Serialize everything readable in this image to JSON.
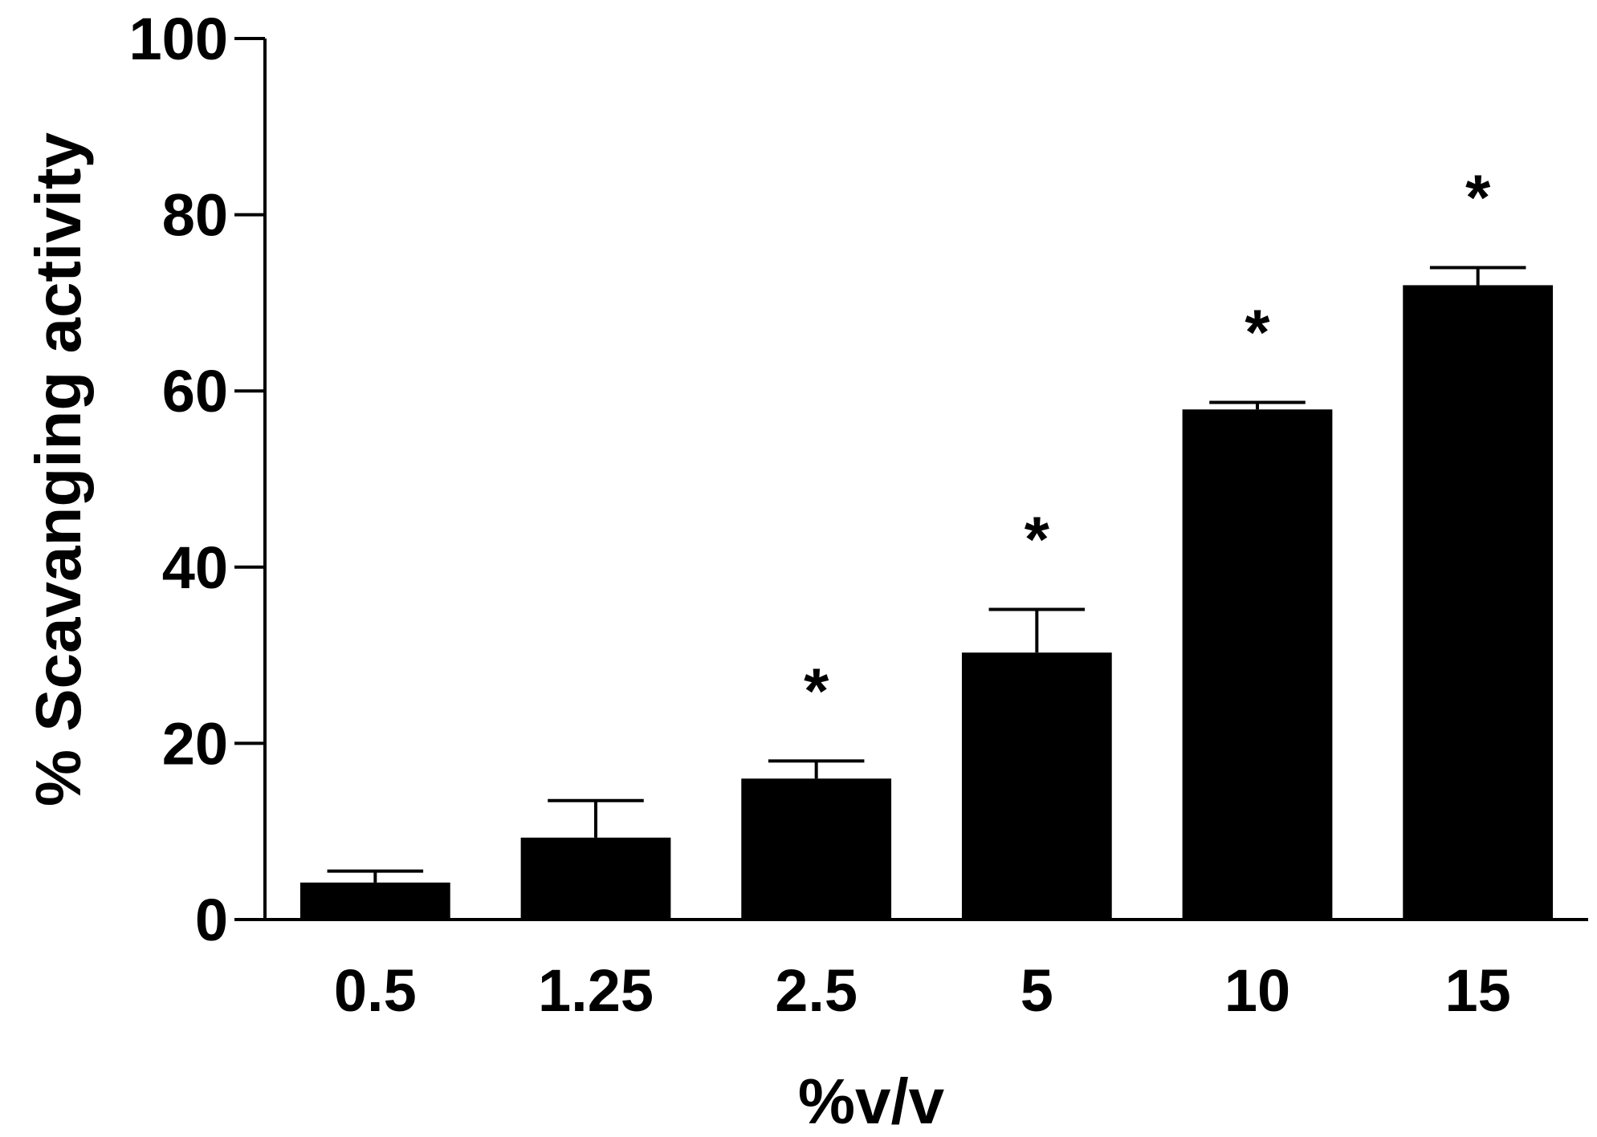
{
  "chart_data": {
    "type": "bar",
    "title": "",
    "xlabel": "%v/v",
    "ylabel": "% Scavanging activity",
    "categories": [
      "0.5",
      "1.25",
      "2.5",
      "5",
      "10",
      "15"
    ],
    "values": [
      4.2,
      9.3,
      16.0,
      30.3,
      57.9,
      72.0
    ],
    "error_upper": [
      5.5,
      13.5,
      18.0,
      35.2,
      58.7,
      74.0
    ],
    "significance": [
      "",
      "",
      "*",
      "*",
      "*",
      "*"
    ],
    "ylim": [
      0,
      100
    ],
    "yticks": [
      "0",
      "20",
      "40",
      "60",
      "80",
      "100"
    ],
    "grid": false,
    "legend": "none",
    "bar_color": "#000000"
  }
}
